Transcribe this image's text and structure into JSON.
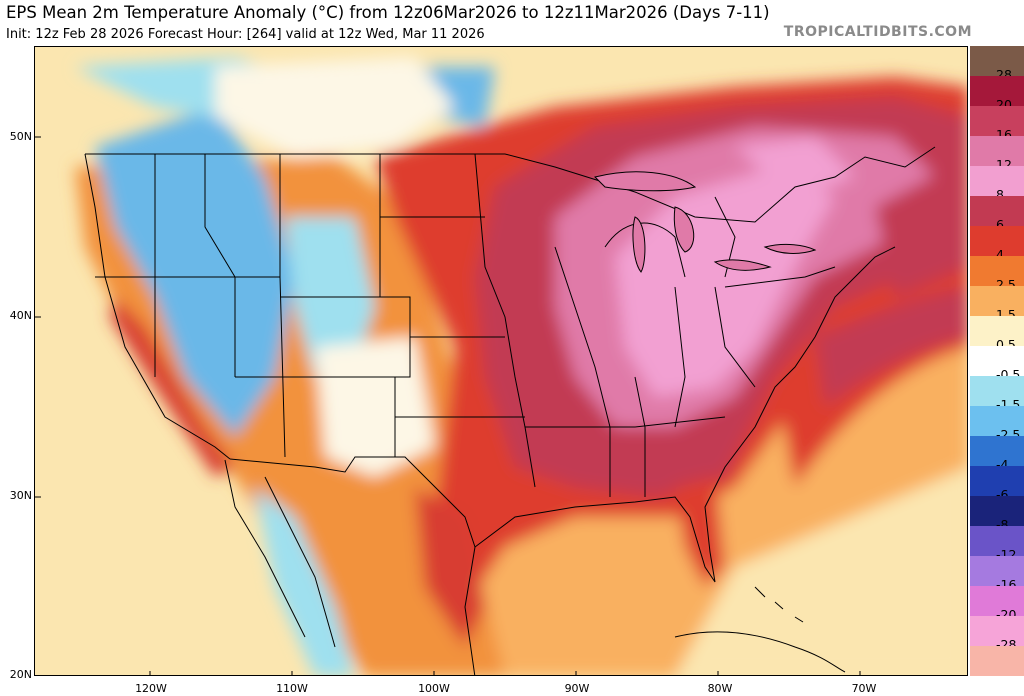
{
  "header": {
    "title": "EPS Mean 2m Temperature Anomaly (°C) from 12z06Mar2026 to 12z11Mar2026 (Days 7-11)",
    "subtitle": "Init: 12z Feb 28 2026   Forecast Hour: [264]   valid at 12z Wed, Mar 11 2026",
    "brand": "TROPICALTIDBITS.COM"
  },
  "map": {
    "lat_labels": [
      "50N",
      "40N",
      "30N",
      "20N"
    ],
    "lon_labels": [
      "120W",
      "110W",
      "100W",
      "90W",
      "80W",
      "70W"
    ]
  },
  "colorbar": {
    "levels": [
      {
        "label": "28",
        "color": "#7b5a48"
      },
      {
        "label": "20",
        "color": "#a5183a"
      },
      {
        "label": "16",
        "color": "#c8405e"
      },
      {
        "label": "12",
        "color": "#e07aa8"
      },
      {
        "label": "8",
        "color": "#f29fd0"
      },
      {
        "label": "6",
        "color": "#c23a52"
      },
      {
        "label": "4",
        "color": "#de3c2e"
      },
      {
        "label": "2.5",
        "color": "#f07a30"
      },
      {
        "label": "1.5",
        "color": "#f9b060"
      },
      {
        "label": "0.5",
        "color": "#fdf2c8"
      },
      {
        "label": "-0.5",
        "color": "#ffffff"
      },
      {
        "label": "-1.5",
        "color": "#9fe0ef"
      },
      {
        "label": "-2.5",
        "color": "#6cc0ef"
      },
      {
        "label": "-4",
        "color": "#2f74d0"
      },
      {
        "label": "-6",
        "color": "#1f3fb0"
      },
      {
        "label": "-8",
        "color": "#1a237a"
      },
      {
        "label": "-12",
        "color": "#6a54c8"
      },
      {
        "label": "-16",
        "color": "#a57ae0"
      },
      {
        "label": "-20",
        "color": "#e07ad8"
      },
      {
        "label": "-28",
        "color": "#f6a4d8"
      },
      {
        "label": "",
        "color": "#f8b5a8"
      }
    ]
  },
  "colors": {
    "ocean_warm": "#fbe6b0",
    "land_warm_orange": "#f2923e",
    "heat_red": "#d83c30",
    "heat_dark": "#c23a52",
    "heat_pink": "#f2a0d2",
    "cold_blue": "#6ab8e8",
    "neutral": "#fdf7e6"
  }
}
